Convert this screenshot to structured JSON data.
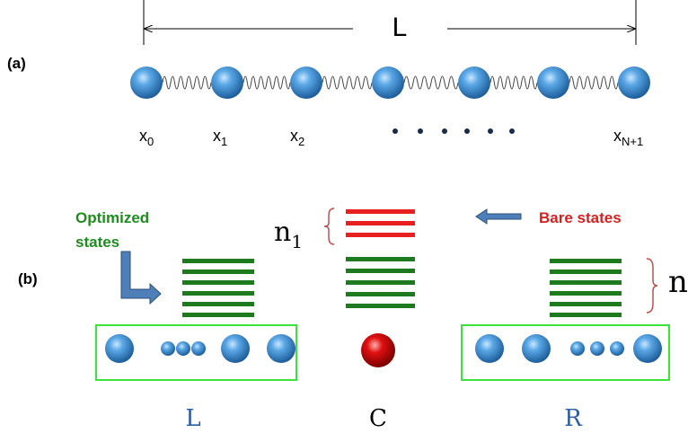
{
  "top_label": "L",
  "panel_a": {
    "label": "(a)",
    "positions": [
      {
        "base": "x",
        "sub": "0"
      },
      {
        "base": "x",
        "sub": "1"
      },
      {
        "base": "x",
        "sub": "2"
      },
      {
        "base": "x",
        "sub": "N+1"
      }
    ]
  },
  "panel_b": {
    "label": "(b)",
    "optimized_label": [
      "Optimized",
      "states"
    ],
    "bare_label": "Bare states",
    "n1": {
      "base": "n",
      "sub": "1"
    },
    "n": "n",
    "blocks": [
      "L",
      "C",
      "R"
    ]
  }
}
